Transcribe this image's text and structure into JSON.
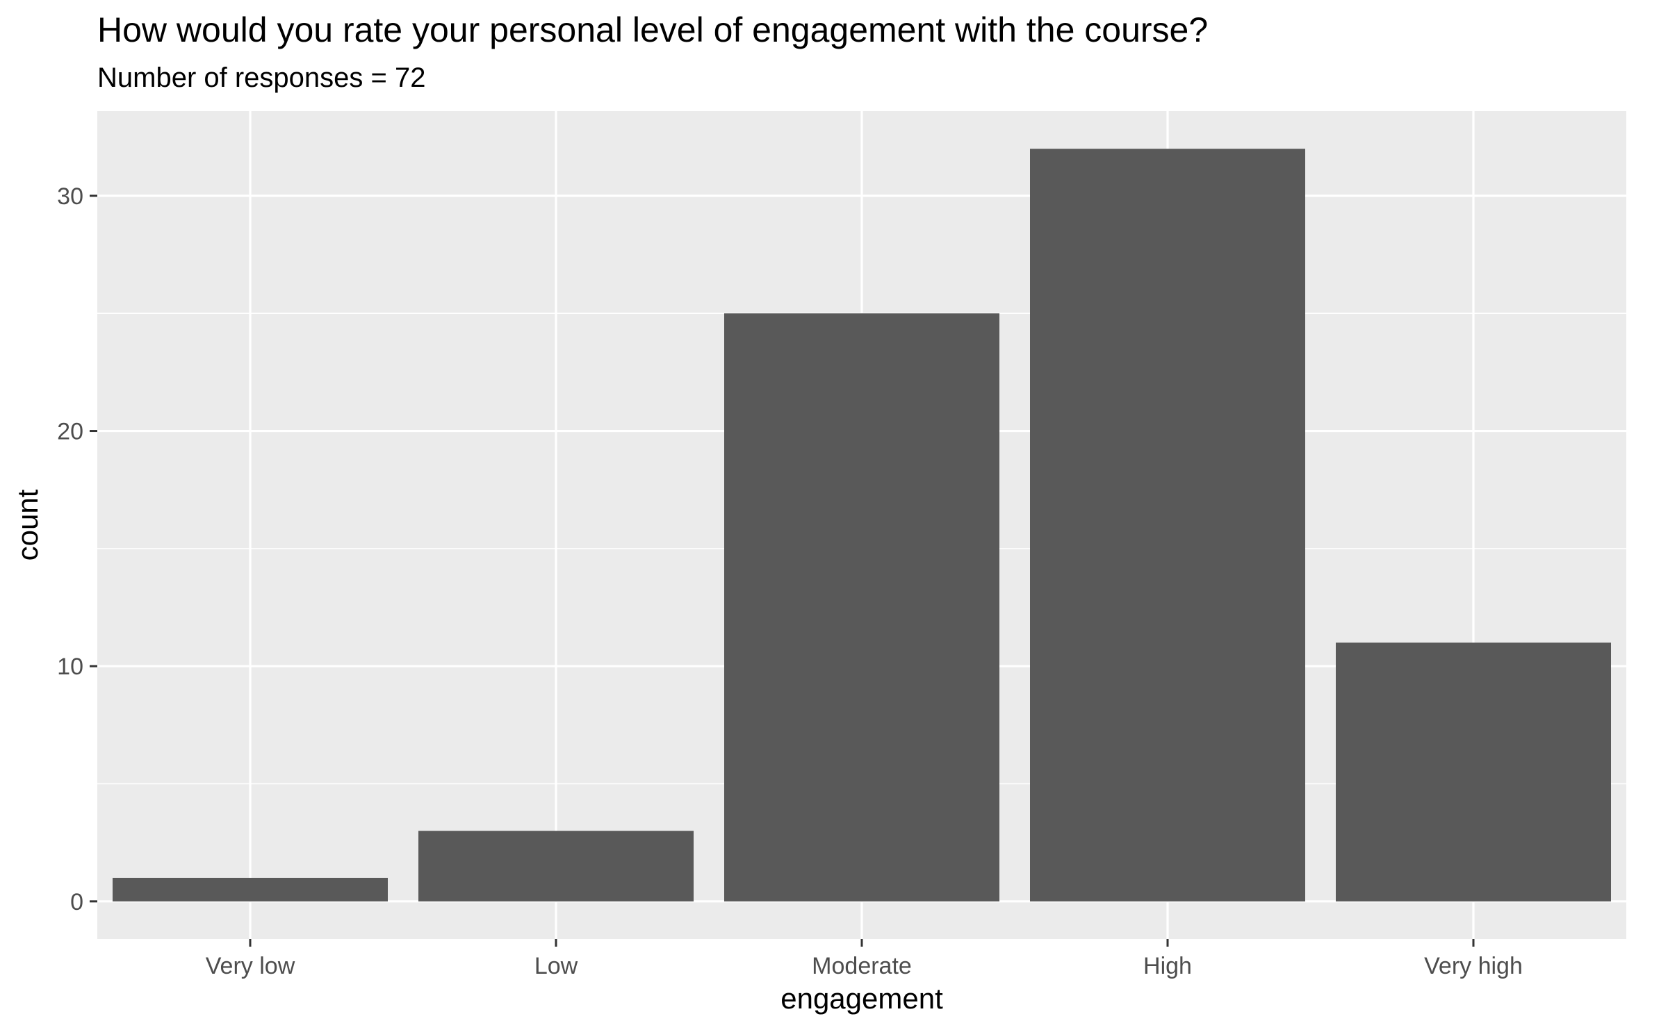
{
  "chart_data": {
    "type": "bar",
    "title": "How would you rate your personal level of engagement with the course?",
    "subtitle": "Number of responses = 72",
    "xlabel": "engagement",
    "ylabel": "count",
    "categories": [
      "Very low",
      "Low",
      "Moderate",
      "High",
      "Very high"
    ],
    "values": [
      1,
      3,
      25,
      32,
      11
    ],
    "ylim": [
      -1.6,
      33.6
    ],
    "yticks": [
      0,
      10,
      20,
      30
    ],
    "grid": true,
    "colors": {
      "panel": "#ebebeb",
      "bar": "#595959",
      "grid": "#ffffff",
      "tick_text": "#4d4d4d",
      "tick_mark": "#333333"
    }
  }
}
